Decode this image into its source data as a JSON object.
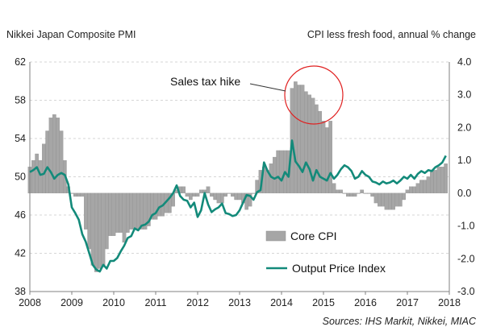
{
  "chart_data": {
    "type": "bar+line",
    "left_title": "Nikkei Japan Composite PMI",
    "right_title": "CPI less fresh food, annual % change",
    "source": "Sources: IHS Markit, Nikkei, MIAC",
    "annotation": "Sales tax hike",
    "x_ticks": [
      "2008",
      "2009",
      "2010",
      "2011",
      "2012",
      "2013",
      "2014",
      "2015",
      "2016",
      "2017",
      "2018"
    ],
    "x_range": [
      "2008-01",
      "2018-01"
    ],
    "left_axis": {
      "ticks": [
        38,
        42,
        46,
        50,
        54,
        58,
        62
      ],
      "range": [
        38,
        62
      ]
    },
    "right_axis": {
      "ticks": [
        "-3.0",
        "-2.0",
        "-1.0",
        "0.0",
        "1.0",
        "2.0",
        "3.0",
        "4.0"
      ],
      "range": [
        -3,
        4
      ]
    },
    "legend": [
      "Core CPI",
      "Output Price Index"
    ],
    "colors": {
      "bar": "#a6a6a6",
      "bar_edge": "#8c8c8c",
      "line": "#138a7a",
      "circle": "#e02020",
      "grid": "#d6d6d6",
      "axis": "#808080"
    },
    "series": [
      {
        "name": "Core CPI",
        "axis": "right",
        "start": "2008-01",
        "values": [
          0.8,
          1.0,
          1.2,
          1.0,
          1.5,
          1.9,
          2.3,
          2.4,
          2.3,
          1.9,
          1.0,
          0.2,
          0.0,
          -0.1,
          -0.1,
          -0.1,
          -1.1,
          -1.7,
          -2.2,
          -2.4,
          -2.3,
          -2.2,
          -1.7,
          -1.3,
          -1.3,
          -1.2,
          -1.2,
          -1.5,
          -1.2,
          -1.1,
          -1.1,
          -1.1,
          -1.1,
          -1.1,
          -1.0,
          -0.8,
          -0.8,
          -0.7,
          -0.7,
          -0.6,
          -0.6,
          -0.4,
          0.1,
          0.2,
          0.2,
          -0.1,
          -0.2,
          -0.1,
          -0.1,
          0.1,
          0.1,
          0.2,
          -0.1,
          -0.2,
          -0.3,
          -0.3,
          -0.1,
          0.0,
          -0.1,
          -0.2,
          -0.2,
          -0.3,
          -0.5,
          -0.4,
          0.0,
          0.4,
          0.7,
          0.8,
          0.7,
          0.9,
          1.1,
          1.3,
          1.3,
          1.3,
          1.3,
          3.2,
          3.4,
          3.3,
          3.3,
          3.1,
          3.0,
          2.9,
          2.7,
          2.5,
          2.2,
          2.0,
          2.2,
          0.3,
          0.1,
          0.1,
          0.0,
          -0.1,
          -0.1,
          -0.1,
          0.0,
          0.1,
          0.0,
          0.0,
          -0.1,
          -0.3,
          -0.4,
          -0.4,
          -0.5,
          -0.5,
          -0.5,
          -0.4,
          -0.4,
          -0.2,
          0.1,
          0.2,
          0.2,
          0.3,
          0.4,
          0.4,
          0.5,
          0.7,
          0.7,
          0.8,
          0.8,
          0.9
        ]
      },
      {
        "name": "Output Price Index",
        "axis": "left",
        "start": "2008-01",
        "values": [
          50.5,
          50.7,
          51.0,
          50.2,
          50.3,
          51.0,
          50.5,
          49.8,
          50.2,
          50.4,
          50.2,
          49.2,
          46.8,
          46.2,
          45.5,
          44.0,
          43.2,
          42.0,
          40.8,
          40.3,
          40.1,
          40.8,
          40.4,
          41.2,
          41.2,
          41.5,
          42.2,
          42.8,
          43.6,
          43.8,
          44.6,
          44.4,
          44.9,
          45.0,
          45.3,
          46.0,
          46.2,
          46.8,
          47.0,
          47.4,
          47.8,
          48.3,
          49.1,
          48.0,
          47.6,
          47.5,
          46.8,
          47.3,
          45.8,
          46.5,
          48.3,
          47.1,
          46.3,
          46.6,
          46.8,
          47.2,
          46.2,
          46.1,
          45.9,
          46.0,
          46.5,
          47.3,
          48.1,
          48.0,
          47.6,
          48.4,
          48.6,
          51.5,
          50.6,
          50.0,
          49.8,
          50.0,
          49.6,
          50.5,
          50.0,
          53.8,
          51.6,
          51.1,
          50.5,
          51.5,
          50.8,
          49.6,
          50.7,
          50.0,
          49.8,
          49.6,
          50.4,
          49.8,
          50.2,
          50.8,
          51.2,
          51.0,
          50.6,
          49.8,
          50.0,
          50.6,
          50.2,
          50.0,
          49.5,
          49.4,
          49.2,
          49.5,
          49.3,
          49.4,
          49.6,
          49.3,
          49.6,
          50.0,
          49.8,
          50.2,
          49.8,
          50.3,
          50.6,
          50.4,
          50.7,
          50.6,
          51.0,
          51.2,
          51.5,
          52.2
        ]
      }
    ]
  }
}
